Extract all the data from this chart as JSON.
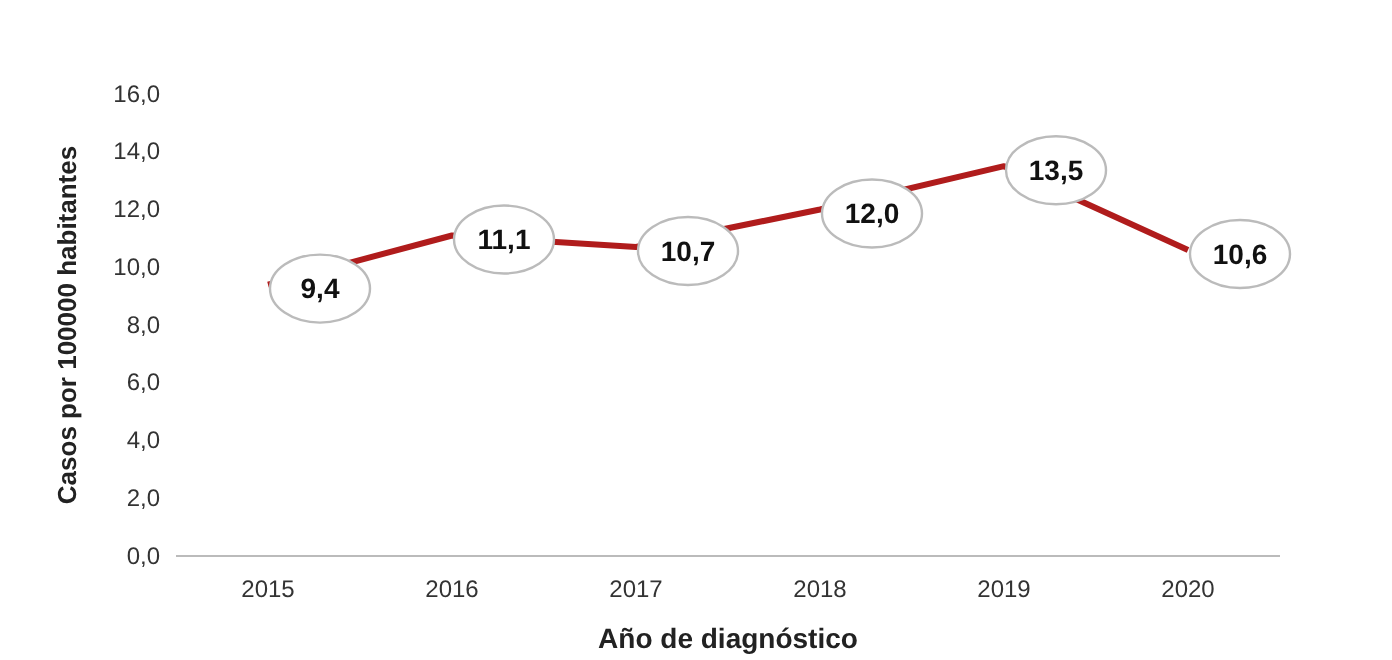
{
  "chart_data": {
    "type": "line",
    "xlabel": "Año de diagnóstico",
    "ylabel": "Casos por 100000 habitantes",
    "categories": [
      "2015",
      "2016",
      "2017",
      "2018",
      "2019",
      "2020"
    ],
    "series": [
      {
        "color": "#b01c1c",
        "values": [
          9.4,
          11.1,
          10.7,
          12.0,
          13.5,
          10.6
        ]
      }
    ],
    "value_labels": [
      "9,4",
      "11,1",
      "10,7",
      "12,0",
      "13,5",
      "10,6"
    ],
    "ylim": [
      0,
      16
    ],
    "yticks": [
      {
        "value": 0,
        "label": "0,0"
      },
      {
        "value": 2,
        "label": "2,0"
      },
      {
        "value": 4,
        "label": "4,0"
      },
      {
        "value": 6,
        "label": "6,0"
      },
      {
        "value": 8,
        "label": "8,0"
      },
      {
        "value": 10,
        "label": "10,0"
      },
      {
        "value": 12,
        "label": "12,0"
      },
      {
        "value": 14,
        "label": "14,0"
      },
      {
        "value": 16,
        "label": "16,0"
      }
    ],
    "grid": false,
    "marker": "none",
    "line_style": "solid"
  }
}
